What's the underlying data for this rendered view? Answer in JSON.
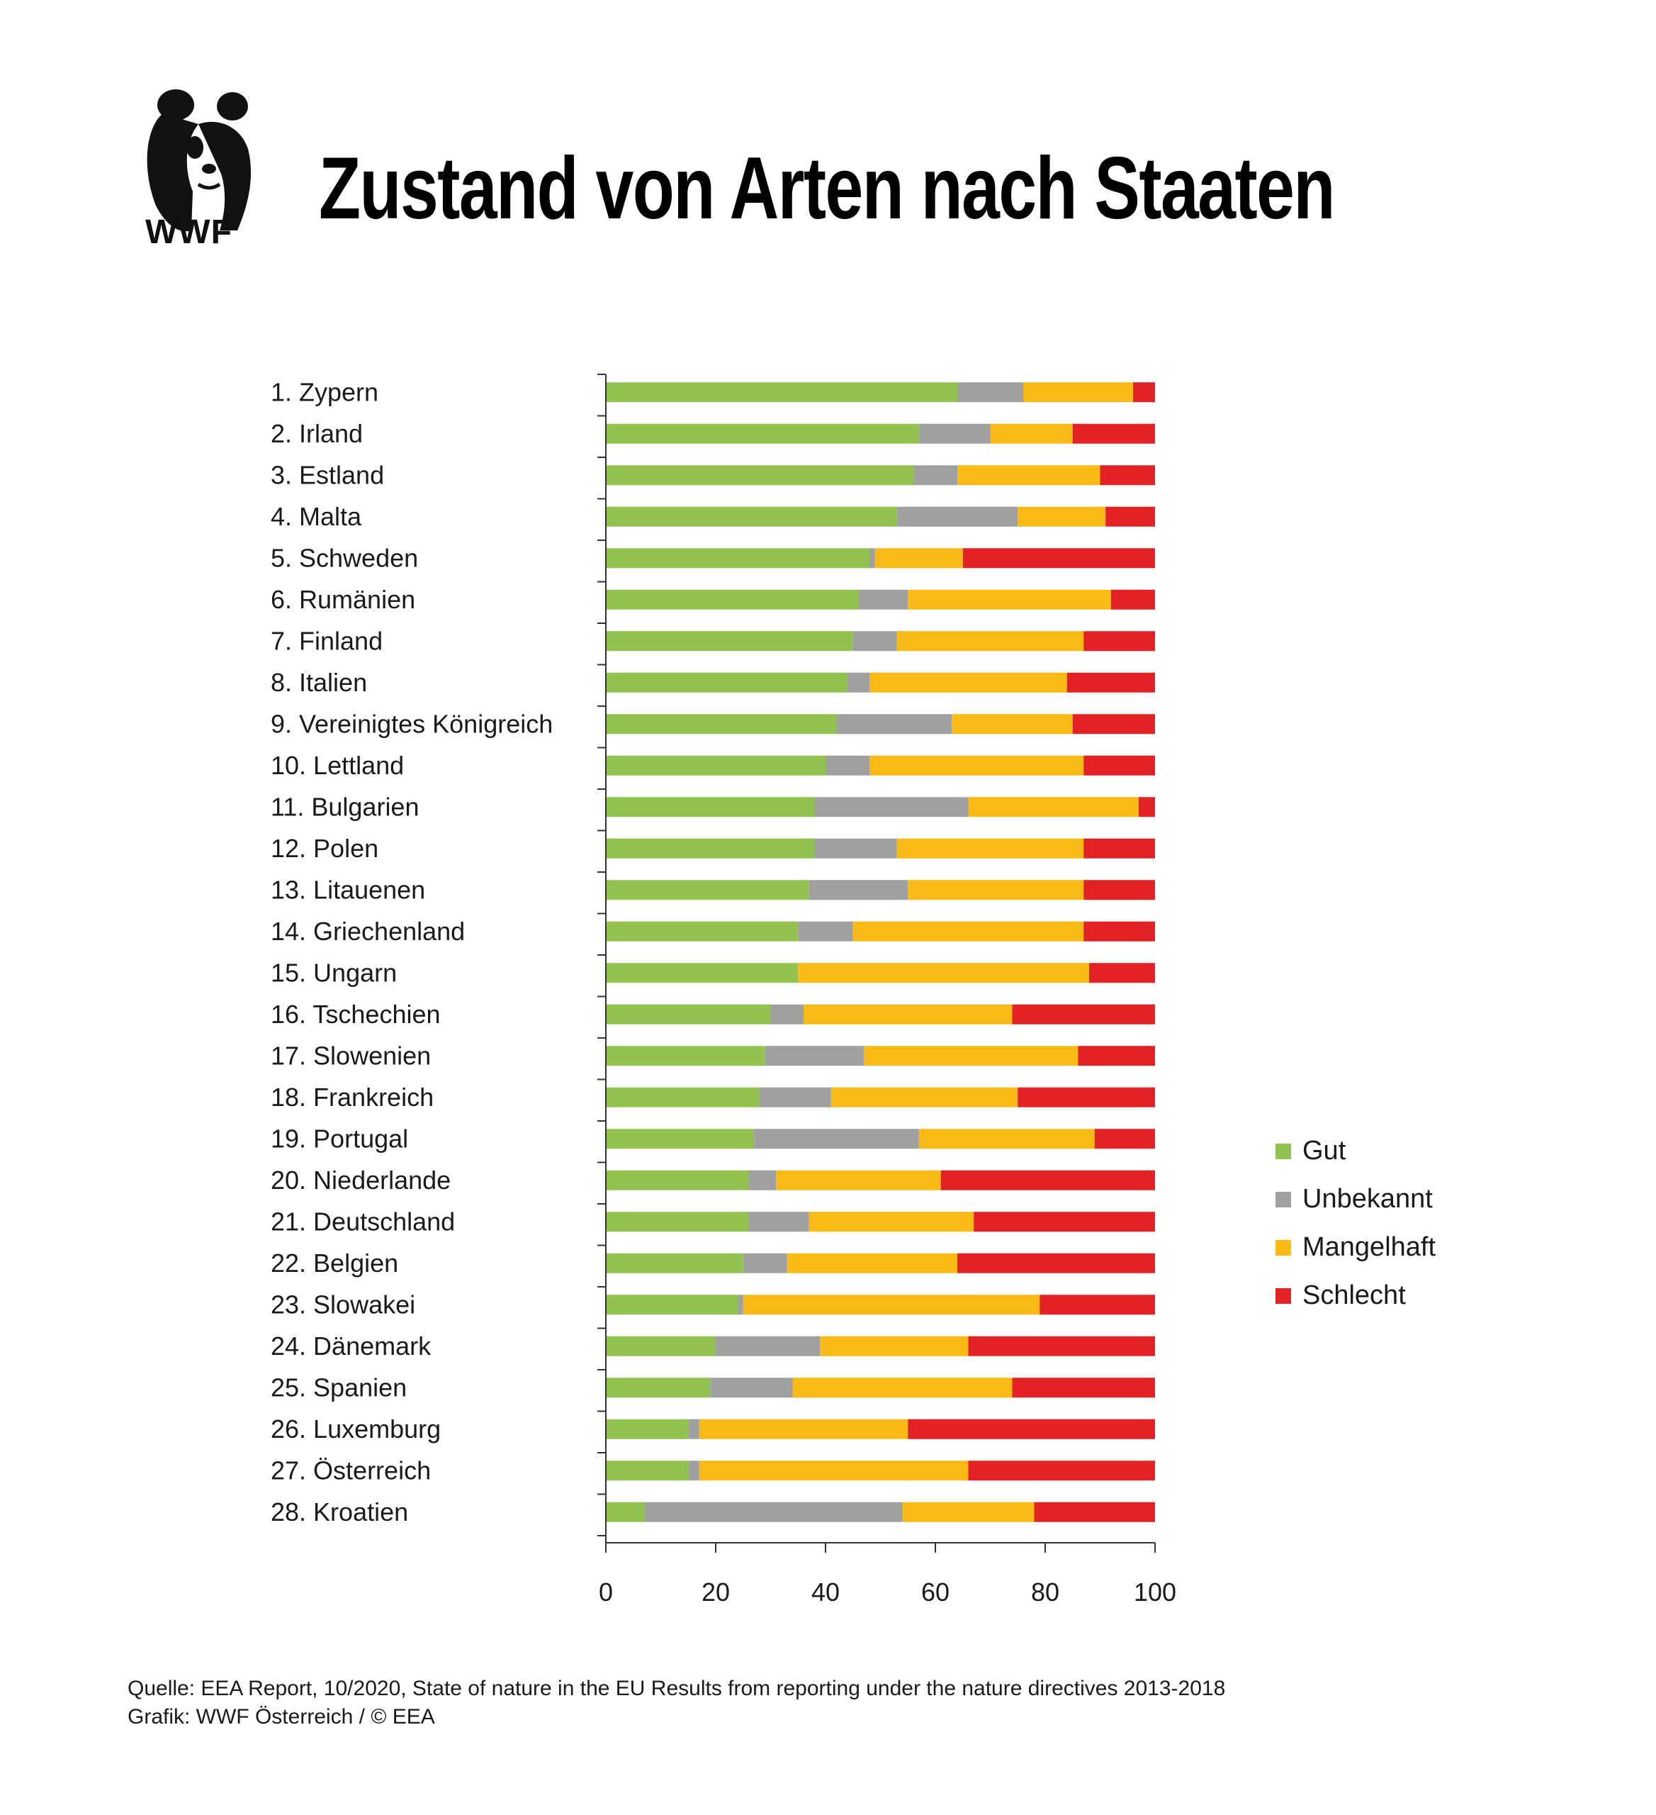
{
  "header": {
    "title": "Zustand von Arten nach Staaten",
    "logo_text": "WWF"
  },
  "colors": {
    "Gut": "#92c350",
    "Unbekannt": "#a0a0a0",
    "Mangelhaft": "#f9ba18",
    "Schlecht": "#e32226"
  },
  "chart_data": {
    "type": "bar",
    "orientation": "horizontal",
    "stacked": true,
    "categories": [
      "1. Zypern",
      "2. Irland",
      "3. Estland",
      "4. Malta",
      "5. Schweden",
      "6. Rumänien",
      "7. Finland",
      "8. Italien",
      "9. Vereinigtes Königreich",
      "10. Lettland",
      "11. Bulgarien",
      "12. Polen",
      "13. Litauenen",
      "14. Griechenland",
      "15. Ungarn",
      "16. Tschechien",
      "17. Slowenien",
      "18. Frankreich",
      "19. Portugal",
      "20. Niederlande",
      "21. Deutschland",
      "22. Belgien",
      "23. Slowakei",
      "24. Dänemark",
      "25. Spanien",
      "26. Luxemburg",
      "27. Österreich",
      "28. Kroatien"
    ],
    "series": [
      {
        "name": "Gut",
        "values": [
          64,
          57,
          56,
          53,
          48,
          46,
          45,
          44,
          42,
          40,
          38,
          38,
          37,
          35,
          35,
          30,
          29,
          28,
          27,
          26,
          26,
          25,
          24,
          20,
          19,
          15,
          15,
          7
        ]
      },
      {
        "name": "Unbekannt",
        "values": [
          12,
          13,
          8,
          22,
          1,
          9,
          8,
          4,
          21,
          8,
          28,
          15,
          18,
          10,
          0,
          6,
          18,
          13,
          30,
          5,
          11,
          8,
          1,
          19,
          15,
          2,
          2,
          47
        ]
      },
      {
        "name": "Mangelhaft",
        "values": [
          20,
          15,
          26,
          16,
          16,
          37,
          34,
          36,
          22,
          39,
          31,
          34,
          32,
          42,
          53,
          38,
          39,
          34,
          32,
          30,
          30,
          31,
          54,
          27,
          40,
          38,
          49,
          24
        ]
      },
      {
        "name": "Schlecht",
        "values": [
          4,
          15,
          10,
          9,
          35,
          8,
          13,
          16,
          15,
          13,
          3,
          13,
          13,
          13,
          12,
          26,
          14,
          25,
          11,
          39,
          33,
          36,
          21,
          34,
          26,
          45,
          34,
          22
        ]
      }
    ],
    "xlim": [
      0,
      100
    ],
    "xticks": [
      0,
      20,
      40,
      60,
      80,
      100
    ],
    "legend_position": "right"
  },
  "footer": {
    "source_line": "Quelle: EEA Report, 10/2020, State of nature in the EU Results from reporting under the nature directives 2013-2018",
    "credit_line": "Grafik: WWF Österreich / © EEA"
  }
}
